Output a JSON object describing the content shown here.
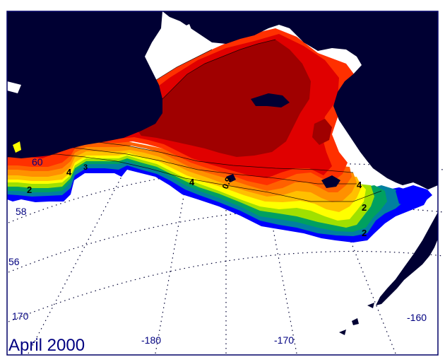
{
  "caption": "April 2000",
  "lat_labels": [
    "60",
    "58",
    "56"
  ],
  "lon_labels": [
    "170",
    "-180",
    "-170",
    "-160"
  ],
  "contour_labels": [
    "2",
    "3",
    "4",
    "0.9",
    "4",
    "2",
    "4",
    "2"
  ],
  "colors": {
    "land": "#000033",
    "open_water": "#ffffff",
    "graticule": "#000033",
    "frame": "#000066",
    "label_text": "#000080",
    "ice_scale": [
      "#0000ff",
      "#0080a0",
      "#00a060",
      "#40c000",
      "#a0e000",
      "#ffff00",
      "#ffc000",
      "#ff9000",
      "#ff6000",
      "#ff3000",
      "#e00000",
      "#a00000"
    ]
  }
}
